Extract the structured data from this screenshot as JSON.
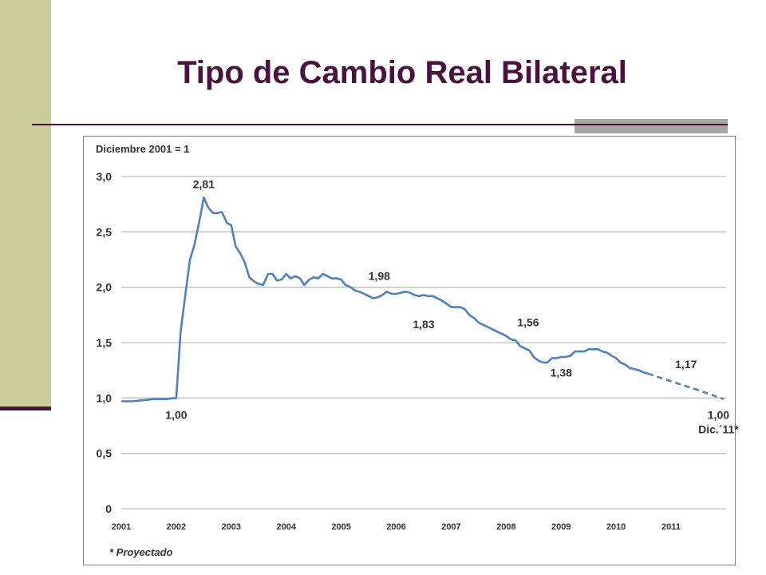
{
  "slide": {
    "title": "Tipo de Cambio Real Bilateral"
  },
  "colors": {
    "title": "#4a1240",
    "sidebar": "#cccc99",
    "line": "#4f81bd",
    "grid": "#bfbfbf"
  },
  "chart_data": {
    "type": "line",
    "subtitle": "Diciembre 2001 = 1",
    "footnote": "* Proyectado",
    "ylim": [
      0,
      3.0
    ],
    "yticks": [
      0,
      0.5,
      1.0,
      1.5,
      2.0,
      2.5,
      3.0
    ],
    "ytick_labels": [
      "0",
      "0,5",
      "1,0",
      "1,5",
      "2,0",
      "2,5",
      "3,0"
    ],
    "xlim": [
      2001,
      2012
    ],
    "xtick_labels": [
      "2001",
      "2002",
      "2003",
      "2004",
      "2005",
      "2006",
      "2007",
      "2008",
      "2009",
      "2010",
      "2011"
    ],
    "grid": true,
    "series": [
      {
        "style": "solid",
        "points": [
          [
            2001.0,
            0.97
          ],
          [
            2001.2,
            0.97
          ],
          [
            2001.4,
            0.98
          ],
          [
            2001.6,
            0.99
          ],
          [
            2001.8,
            0.99
          ],
          [
            2002.0,
            1.0
          ],
          [
            2002.08,
            1.6
          ],
          [
            2002.17,
            1.95
          ],
          [
            2002.25,
            2.25
          ],
          [
            2002.33,
            2.38
          ],
          [
            2002.42,
            2.6
          ],
          [
            2002.5,
            2.81
          ],
          [
            2002.58,
            2.72
          ],
          [
            2002.67,
            2.67
          ],
          [
            2002.75,
            2.67
          ],
          [
            2002.83,
            2.68
          ],
          [
            2002.92,
            2.58
          ],
          [
            2003.0,
            2.56
          ],
          [
            2003.08,
            2.37
          ],
          [
            2003.17,
            2.3
          ],
          [
            2003.25,
            2.22
          ],
          [
            2003.33,
            2.09
          ],
          [
            2003.42,
            2.05
          ],
          [
            2003.5,
            2.03
          ],
          [
            2003.58,
            2.02
          ],
          [
            2003.67,
            2.12
          ],
          [
            2003.75,
            2.12
          ],
          [
            2003.83,
            2.06
          ],
          [
            2003.92,
            2.07
          ],
          [
            2004.0,
            2.12
          ],
          [
            2004.08,
            2.08
          ],
          [
            2004.17,
            2.1
          ],
          [
            2004.25,
            2.08
          ],
          [
            2004.33,
            2.02
          ],
          [
            2004.42,
            2.07
          ],
          [
            2004.5,
            2.09
          ],
          [
            2004.58,
            2.08
          ],
          [
            2004.67,
            2.12
          ],
          [
            2004.75,
            2.1
          ],
          [
            2004.83,
            2.08
          ],
          [
            2004.92,
            2.08
          ],
          [
            2005.0,
            2.07
          ],
          [
            2005.08,
            2.02
          ],
          [
            2005.17,
            2.0
          ],
          [
            2005.25,
            1.97
          ],
          [
            2005.33,
            1.96
          ],
          [
            2005.42,
            1.94
          ],
          [
            2005.5,
            1.92
          ],
          [
            2005.58,
            1.9
          ],
          [
            2005.67,
            1.91
          ],
          [
            2005.75,
            1.93
          ],
          [
            2005.83,
            1.96
          ],
          [
            2005.92,
            1.94
          ],
          [
            2006.0,
            1.94
          ],
          [
            2006.08,
            1.95
          ],
          [
            2006.17,
            1.96
          ],
          [
            2006.25,
            1.95
          ],
          [
            2006.33,
            1.93
          ],
          [
            2006.42,
            1.92
          ],
          [
            2006.5,
            1.93
          ],
          [
            2006.58,
            1.92
          ],
          [
            2006.67,
            1.92
          ],
          [
            2006.75,
            1.9
          ],
          [
            2006.83,
            1.88
          ],
          [
            2006.92,
            1.85
          ],
          [
            2007.0,
            1.82
          ],
          [
            2007.08,
            1.82
          ],
          [
            2007.17,
            1.82
          ],
          [
            2007.25,
            1.8
          ],
          [
            2007.33,
            1.75
          ],
          [
            2007.42,
            1.72
          ],
          [
            2007.5,
            1.68
          ],
          [
            2007.58,
            1.66
          ],
          [
            2007.67,
            1.64
          ],
          [
            2007.75,
            1.62
          ],
          [
            2007.83,
            1.6
          ],
          [
            2007.92,
            1.58
          ],
          [
            2008.0,
            1.56
          ],
          [
            2008.08,
            1.53
          ],
          [
            2008.17,
            1.52
          ],
          [
            2008.25,
            1.47
          ],
          [
            2008.33,
            1.45
          ],
          [
            2008.42,
            1.43
          ],
          [
            2008.5,
            1.37
          ],
          [
            2008.58,
            1.34
          ],
          [
            2008.67,
            1.32
          ],
          [
            2008.75,
            1.32
          ],
          [
            2008.83,
            1.36
          ],
          [
            2008.92,
            1.36
          ],
          [
            2009.0,
            1.37
          ],
          [
            2009.08,
            1.37
          ],
          [
            2009.17,
            1.38
          ],
          [
            2009.25,
            1.42
          ],
          [
            2009.33,
            1.42
          ],
          [
            2009.42,
            1.42
          ],
          [
            2009.5,
            1.44
          ],
          [
            2009.58,
            1.44
          ],
          [
            2009.67,
            1.44
          ],
          [
            2009.75,
            1.42
          ],
          [
            2009.83,
            1.41
          ],
          [
            2009.92,
            1.38
          ],
          [
            2010.0,
            1.36
          ],
          [
            2010.08,
            1.32
          ],
          [
            2010.17,
            1.3
          ],
          [
            2010.25,
            1.27
          ],
          [
            2010.33,
            1.26
          ],
          [
            2010.42,
            1.25
          ],
          [
            2010.5,
            1.23
          ],
          [
            2010.58,
            1.22
          ]
        ]
      },
      {
        "style": "dashed",
        "points": [
          [
            2010.58,
            1.22
          ],
          [
            2011.0,
            1.15
          ],
          [
            2011.5,
            1.07
          ],
          [
            2011.95,
            0.99
          ]
        ]
      }
    ],
    "annotations": [
      {
        "text": "2,81",
        "x": 2002.5,
        "y": 2.81
      },
      {
        "text": "1,00",
        "x": 2002.0,
        "y": 1.0
      },
      {
        "text": "1,98",
        "x": 2005.75,
        "y": 1.98
      },
      {
        "text": "1,83",
        "x": 2006.5,
        "y": 1.83
      },
      {
        "text": "1,56",
        "x": 2008.4,
        "y": 1.56
      },
      {
        "text": "1,38",
        "x": 2009.0,
        "y": 1.38
      },
      {
        "text": "1,17",
        "x": 2011.3,
        "y": 1.17
      },
      {
        "text": "1,00",
        "x": 2011.6,
        "y": 1.0
      },
      {
        "text": "Dic.´11*",
        "x": 2011.6,
        "y": 1.0
      }
    ]
  }
}
